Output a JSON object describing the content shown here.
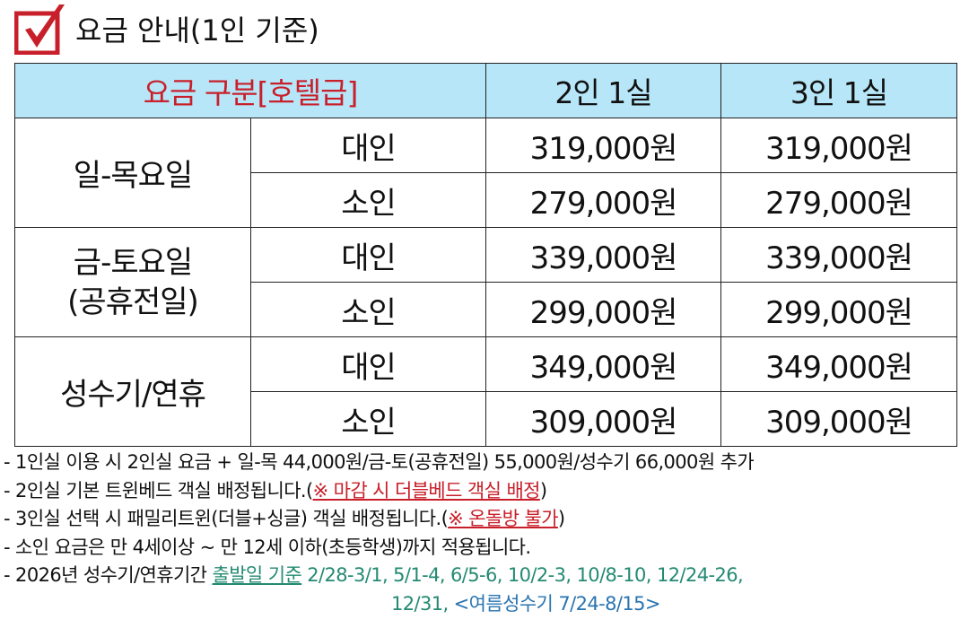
{
  "title": "요금 안내(1인 기준)",
  "colors": {
    "accent": "#c8202a",
    "header_bg": "#b7e6f9",
    "teal": "#248a72",
    "blue": "#2a74b0"
  },
  "table": {
    "headers": [
      "요금 구분[호텔급]",
      "2인 1실",
      "3인 1실"
    ],
    "groups": [
      {
        "label": "일-목요일",
        "rows": [
          {
            "type": "대인",
            "p2": "319,000원",
            "p3": "319,000원"
          },
          {
            "type": "소인",
            "p2": "279,000원",
            "p3": "279,000원"
          }
        ]
      },
      {
        "label": "금-토요일",
        "label2": "(공휴전일)",
        "rows": [
          {
            "type": "대인",
            "p2": "339,000원",
            "p3": "339,000원"
          },
          {
            "type": "소인",
            "p2": "299,000원",
            "p3": "299,000원"
          }
        ]
      },
      {
        "label": "성수기/연휴",
        "rows": [
          {
            "type": "대인",
            "p2": "349,000원",
            "p3": "349,000원"
          },
          {
            "type": "소인",
            "p2": "309,000원",
            "p3": "309,000원"
          }
        ]
      }
    ]
  },
  "notes": {
    "n1": "- 1인실 이용 시 2인실 요금 + 일-목 44,000원/금-토(공휴전일) 55,000원/성수기 66,000원 추가",
    "n2": "- 2인실 기본 트윈베드 객실 배정됩니다.(",
    "n2_red": "※ 마감 시 더블베드 객실 배정",
    "n2_end": ")",
    "n3": "- 3인실 선택 시 패밀리트윈(더블+싱글) 객실 배정됩니다.(",
    "n3_red": "※ 온돌방 불가",
    "n3_end": ")",
    "n4": "- 소인 요금은 만 4세이상 ~ 만 12세 이하(초등학생)까지 적용됩니다.",
    "n5": "- 2026년 성수기/연휴기간 ",
    "n5_u": "출발일 기준",
    "n5_dates": " 2/28-3/1, 5/1-4, 6/5-6, 10/2-3, 10/8-10, 12/24-26,",
    "n5_dates2": "12/31, ",
    "n5_summer": "<여름성수기 7/24-8/15>"
  }
}
